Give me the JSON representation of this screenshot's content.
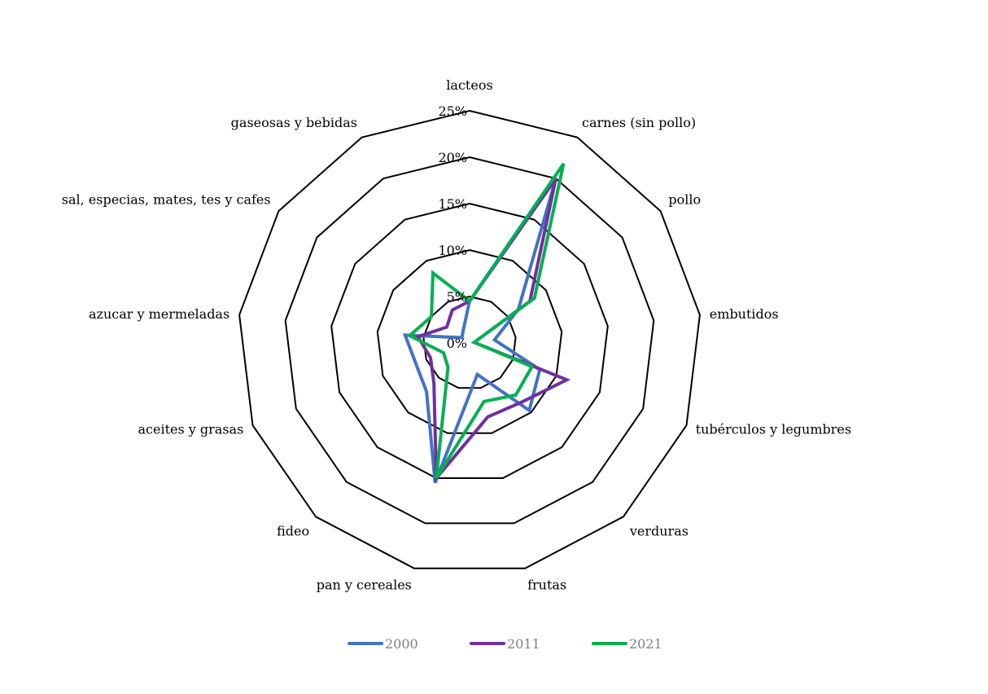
{
  "chart_data": {
    "type": "radar",
    "categories": [
      "lacteos",
      "carnes (sin pollo)",
      "pollo",
      "embutidos",
      "tubérculos y legumbres",
      "verduras",
      "frutas",
      "pan y cereales",
      "fideo",
      "aceites y grasas",
      "azucar y mermeladas",
      "sal, especias, mates, tes y cafes",
      "gaseosas y bebidas"
    ],
    "ticks": [
      "0%",
      "5%",
      "10%",
      "15%",
      "20%",
      "25%"
    ],
    "rlim": [
      0,
      25
    ],
    "grid": true,
    "legend_position": "bottom",
    "series": [
      {
        "name": "2000",
        "color": "#4472c4",
        "values": [
          4.5,
          20.0,
          6.4,
          2.7,
          8.1,
          9.7,
          3.5,
          15.5,
          7.0,
          6.2,
          7.0,
          1.0,
          1.5
        ]
      },
      {
        "name": "2011",
        "color": "#7030a0",
        "values": [
          4.5,
          20.0,
          7.9,
          0.5,
          11.2,
          8.5,
          8.2,
          15.0,
          5.8,
          4.5,
          5.6,
          3.0,
          4.0
        ]
      },
      {
        "name": "2021",
        "color": "#00b050",
        "values": [
          4.5,
          21.8,
          8.5,
          0.5,
          7.2,
          7.5,
          6.5,
          15.0,
          3.5,
          3.0,
          6.5,
          5.0,
          8.5
        ]
      }
    ]
  }
}
